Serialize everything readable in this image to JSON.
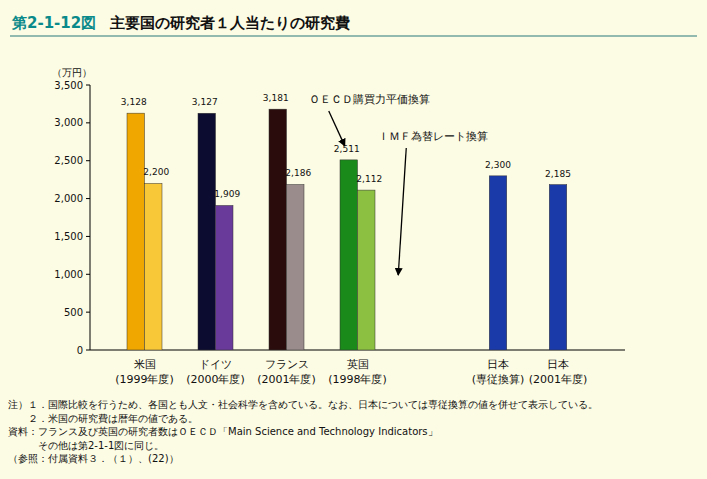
{
  "chart_data": {
    "type": "bar",
    "figure_label": "第2-1-12図",
    "title": "主要国の研究者１人当たりの研究費",
    "y_label": "（万円）",
    "categories": [
      "米国\n(1999年度)",
      "ドイツ\n(2000年度)",
      "フランス\n(2001年度)",
      "英国\n(1998年度)",
      "日本\n(専従換算)",
      "日本\n(2001年度)"
    ],
    "series": [
      {
        "name": "ＯＥＣＤ購買力平価換算",
        "values": [
          3128,
          3127,
          3181,
          2511,
          null,
          null
        ],
        "value_labels": [
          "3,128",
          "3,127",
          "3,181",
          "2,511",
          null,
          null
        ],
        "colors": [
          "#f0a800",
          "#0c0c30",
          "#2a0c0c",
          "#1a8a1a",
          null,
          null
        ]
      },
      {
        "name": "ＩＭＦ為替レート換算",
        "values": [
          2200,
          1909,
          2186,
          2112,
          null,
          null
        ],
        "value_labels": [
          "2,200",
          "1,909",
          "2,186",
          "2,112",
          null,
          null
        ],
        "colors": [
          "#f8c838",
          "#6a3a9a",
          "#9a8c8c",
          "#8cc040",
          null,
          null
        ]
      },
      {
        "values": [
          null,
          null,
          null,
          null,
          2300,
          2185
        ],
        "value_labels": [
          null,
          null,
          null,
          null,
          "2,300",
          "2,185"
        ],
        "colors": [
          null,
          null,
          null,
          null,
          "#1a3aaa",
          "#1a3aaa"
        ]
      }
    ],
    "ylim": [
      0,
      3500
    ],
    "yticks": [
      0,
      500,
      {
        "value": 1000,
        "label": "1,000"
      },
      {
        "value": 1500,
        "label": "1,500"
      },
      {
        "value": 2000,
        "label": "2,000"
      },
      {
        "value": 2500,
        "label": "2,500"
      },
      {
        "value": 3000,
        "label": "3,000"
      },
      {
        "value": 3500,
        "label": "3,500"
      }
    ],
    "data_labels": true,
    "grid": false,
    "notes": [
      "注）１．国際比較を行うため、各国とも人文・社会科学を含めている。なお、日本については専従換算の値を併せて表示している。",
      "　　２．米国の研究費は暦年の値である。",
      "資料：フランス及び英国の研究者数はＯＥＣＤ「Main Science and Technology Indicators」",
      "　　　その他は第2-1-1図に同じ。",
      "（参照：付属資料３．（１）、(22)）"
    ]
  }
}
